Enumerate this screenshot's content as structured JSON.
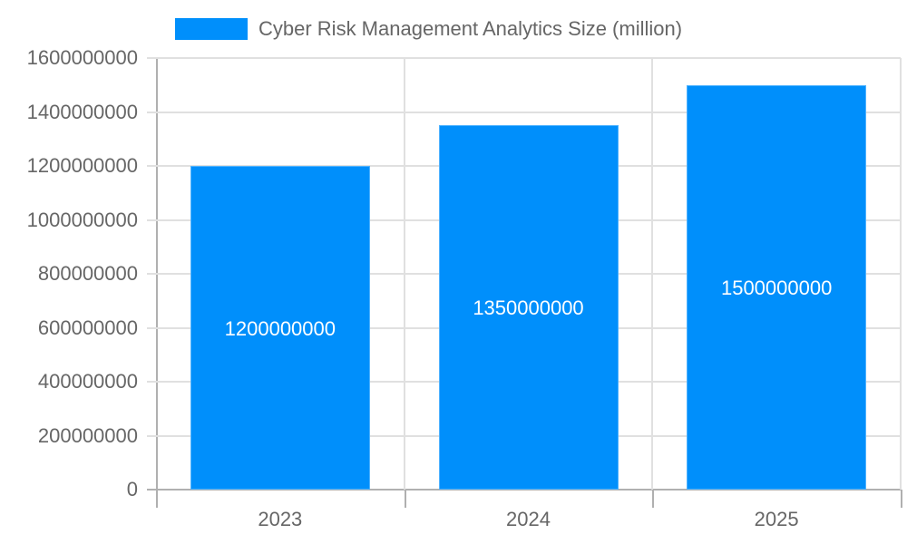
{
  "legend": {
    "label": "Cyber Risk Management Analytics Size (million)",
    "color": "#008ffb"
  },
  "y_ticks": [
    "1600000000",
    "1400000000",
    "1200000000",
    "1000000000",
    "800000000",
    "600000000",
    "400000000",
    "200000000",
    "0"
  ],
  "x_ticks": [
    "2023",
    "2024",
    "2025"
  ],
  "bars": [
    {
      "category": "2023",
      "value": 1200000000,
      "label": "1200000000"
    },
    {
      "category": "2024",
      "value": 1350000000,
      "label": "1350000000"
    },
    {
      "category": "2025",
      "value": 1500000000,
      "label": "1500000000"
    }
  ],
  "chart_data": {
    "type": "bar",
    "title": "",
    "categories": [
      "2023",
      "2024",
      "2025"
    ],
    "series": [
      {
        "name": "Cyber Risk Management Analytics Size (million)",
        "values": [
          1200000000,
          1350000000,
          1500000000
        ],
        "color": "#008ffb"
      }
    ],
    "xlabel": "",
    "ylabel": "",
    "ylim": [
      0,
      1600000000
    ],
    "yticks": [
      0,
      200000000,
      400000000,
      600000000,
      800000000,
      1000000000,
      1200000000,
      1400000000,
      1600000000
    ],
    "grid": true,
    "legend_position": "top",
    "data_labels": true
  }
}
